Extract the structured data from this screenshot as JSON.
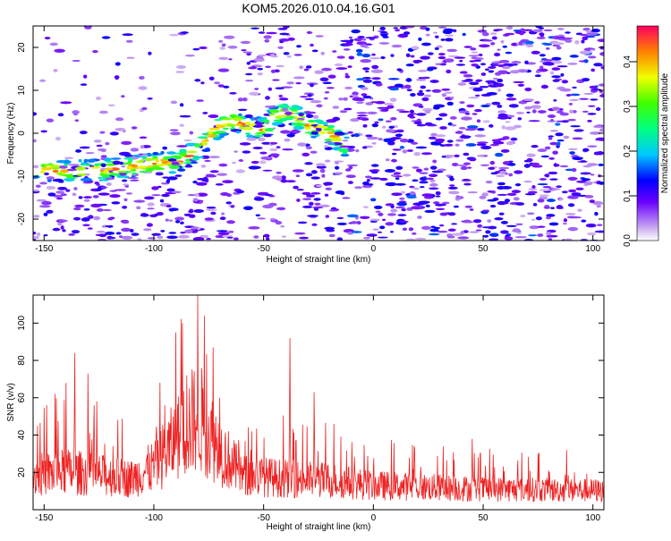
{
  "title": "KOM5.2026.010.04.16.G01",
  "chart_data": [
    {
      "type": "heatmap",
      "xlabel": "Height of straight line (km)",
      "ylabel": "Frequency (Hz)",
      "xlim": [
        -155,
        105
      ],
      "ylim": [
        -25,
        25
      ],
      "xticks": [
        -150,
        -100,
        -50,
        0,
        50,
        100
      ],
      "yticks": [
        -20,
        -10,
        0,
        10,
        20
      ],
      "colorbar": {
        "label": "Normalized spectral amplitude",
        "range": [
          0.0,
          0.48
        ],
        "ticks": [
          0.0,
          0.1,
          0.2,
          0.3,
          0.4
        ]
      },
      "ridge": {
        "description": "strong Doppler trace",
        "points": [
          [
            -155,
            -8
          ],
          [
            -140,
            -9
          ],
          [
            -120,
            -8.5
          ],
          [
            -100,
            -7
          ],
          [
            -88,
            -6.5
          ],
          [
            -80,
            -4
          ],
          [
            -72,
            1
          ],
          [
            -65,
            3
          ],
          [
            -60,
            2
          ],
          [
            -50,
            1
          ],
          [
            -45,
            4
          ],
          [
            -38,
            5
          ],
          [
            -30,
            2
          ],
          [
            -20,
            0
          ],
          [
            -12,
            -3
          ]
        ]
      }
    },
    {
      "type": "line",
      "xlabel": "Height of straight line (km)",
      "ylabel": "SNR (v/v)",
      "xlim": [
        -155,
        105
      ],
      "ylim": [
        0,
        115
      ],
      "xticks": [
        -150,
        -100,
        -50,
        0,
        50,
        100
      ],
      "yticks": [
        20,
        40,
        60,
        80,
        100
      ],
      "color": "#ee2222",
      "peaks": [
        [
          -153,
          45
        ],
        [
          -145,
          62
        ],
        [
          -140,
          68
        ],
        [
          -136,
          84
        ],
        [
          -130,
          73
        ],
        [
          -126,
          58
        ],
        [
          -95,
          56
        ],
        [
          -90,
          95
        ],
        [
          -87,
          100
        ],
        [
          -85,
          72
        ],
        [
          -80,
          115
        ],
        [
          -77,
          104
        ],
        [
          -73,
          87
        ],
        [
          -70,
          60
        ],
        [
          -38,
          92
        ],
        [
          -27,
          63
        ],
        [
          -18,
          46
        ],
        [
          45,
          38
        ],
        [
          75,
          30
        ],
        [
          88,
          32
        ]
      ],
      "baseline": [
        [
          -155,
          20
        ],
        [
          -140,
          22
        ],
        [
          -110,
          18
        ],
        [
          -100,
          25
        ],
        [
          -90,
          40
        ],
        [
          -80,
          55
        ],
        [
          -70,
          35
        ],
        [
          -60,
          20
        ],
        [
          -40,
          18
        ],
        [
          -20,
          17
        ],
        [
          0,
          14
        ],
        [
          50,
          12
        ],
        [
          105,
          11
        ]
      ]
    }
  ]
}
